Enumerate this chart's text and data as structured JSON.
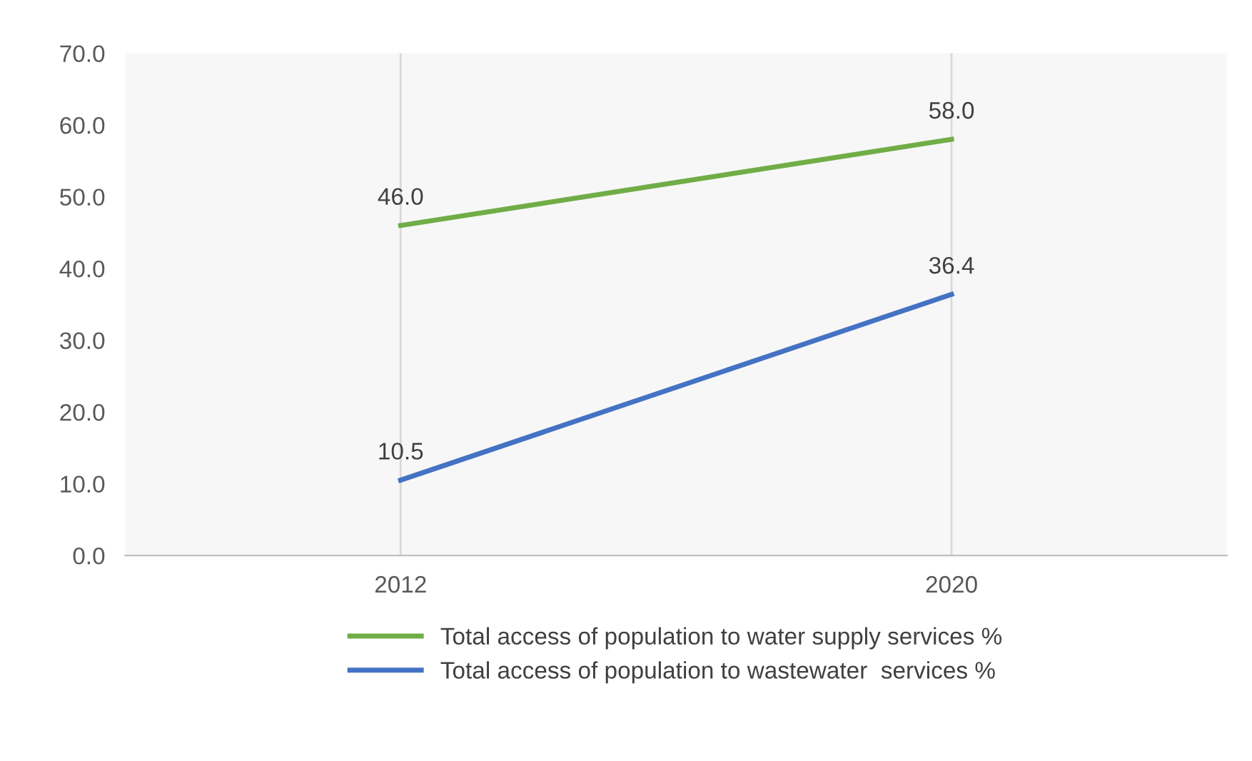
{
  "chart_data": {
    "type": "line",
    "categories": [
      "2012",
      "2020"
    ],
    "series": [
      {
        "name": "Total access of population to water supply services %",
        "color": "#70ad47",
        "values": [
          46.0,
          58.0
        ],
        "value_labels": [
          "46.0",
          "58.0"
        ]
      },
      {
        "name": "Total access of population to wastewater  services %",
        "color": "#4472c4",
        "values": [
          10.5,
          36.4
        ],
        "value_labels": [
          "10.5",
          "36.4"
        ]
      }
    ],
    "ylim": [
      0,
      70
    ],
    "yticks": [
      {
        "value": 0,
        "label": "0.0"
      },
      {
        "value": 10,
        "label": "10.0"
      },
      {
        "value": 20,
        "label": "20.0"
      },
      {
        "value": 30,
        "label": "30.0"
      },
      {
        "value": 40,
        "label": "40.0"
      },
      {
        "value": 50,
        "label": "50.0"
      },
      {
        "value": 60,
        "label": "60.0"
      },
      {
        "value": 70,
        "label": "70.0"
      }
    ],
    "grid": "x",
    "legend": "bottom",
    "marker": "none",
    "line_style": "solid"
  }
}
